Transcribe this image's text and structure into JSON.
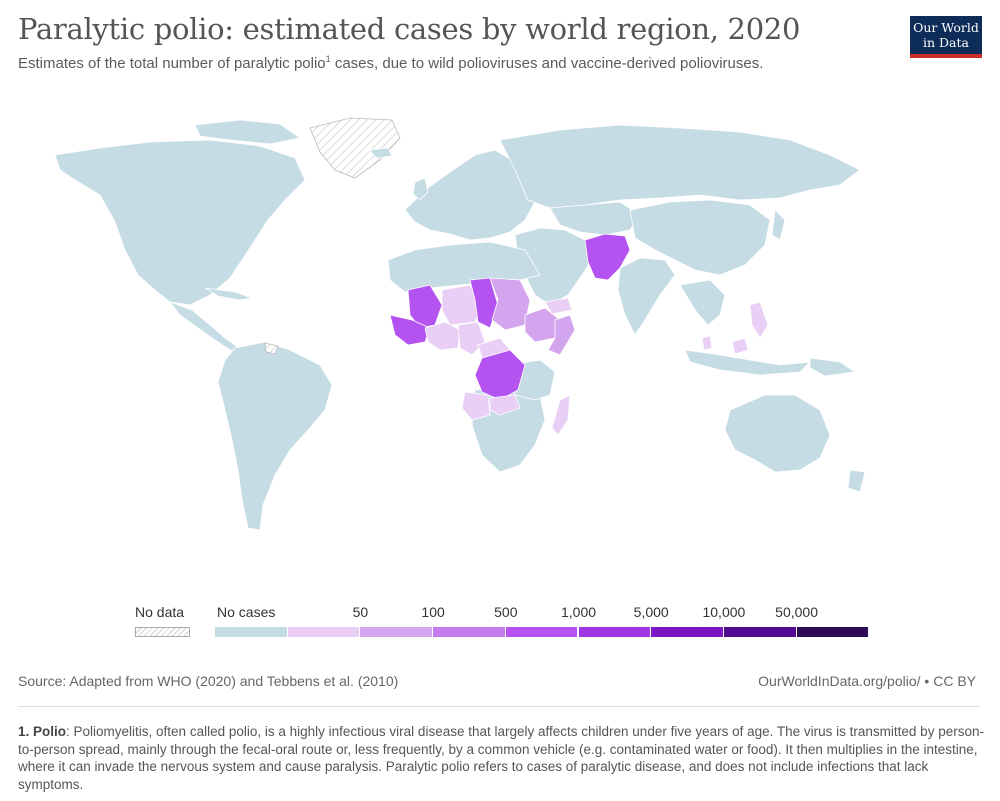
{
  "title": "Paralytic polio: estimated cases by world region, 2020",
  "subtitle": {
    "before": "Estimates of the total number of paralytic polio",
    "sup": "1",
    "after": " cases, due to wild polioviruses and vaccine-derived polioviruses."
  },
  "logo": {
    "line1": "Our World",
    "line2": "in Data"
  },
  "legend": {
    "no_data_label": "No data",
    "bins": [
      {
        "color": "#c5dce4"
      },
      {
        "color": "#e9cff5"
      },
      {
        "color": "#d3a5ef"
      },
      {
        "color": "#c27ced"
      },
      {
        "color": "#b453ef"
      },
      {
        "color": "#9f35e3"
      },
      {
        "color": "#7b17c2"
      },
      {
        "color": "#520c92"
      },
      {
        "color": "#2d0c57"
      }
    ],
    "labels": [
      {
        "text": "No cases"
      },
      {
        "text": "50"
      },
      {
        "text": "100"
      },
      {
        "text": "500"
      },
      {
        "text": "1,000"
      },
      {
        "text": "5,000"
      },
      {
        "text": "10,000"
      },
      {
        "text": "50,000"
      }
    ]
  },
  "map": {
    "base_color": "#c5dce4",
    "border_color": "#ffffff",
    "nodata_color": "hatched"
  },
  "source": "Source: Adapted from WHO (2020) and Tebbens et al. (2010)",
  "url": "OurWorldInData.org/polio/ • CC BY",
  "footnote": {
    "term": "1. Polio",
    "text": ": Poliomyelitis, often called polio, is a highly infectious viral disease that largely affects children under five years of age. The virus is transmitted by person-to-person spread, mainly through the fecal-oral route or, less frequently, by a common vehicle (e.g. contaminated water or food). It then multiplies in the intestine, where it can invade the nervous system and cause paralysis. Paralytic polio refers to cases of paralytic disease, and does not include infections that lack symptoms."
  }
}
